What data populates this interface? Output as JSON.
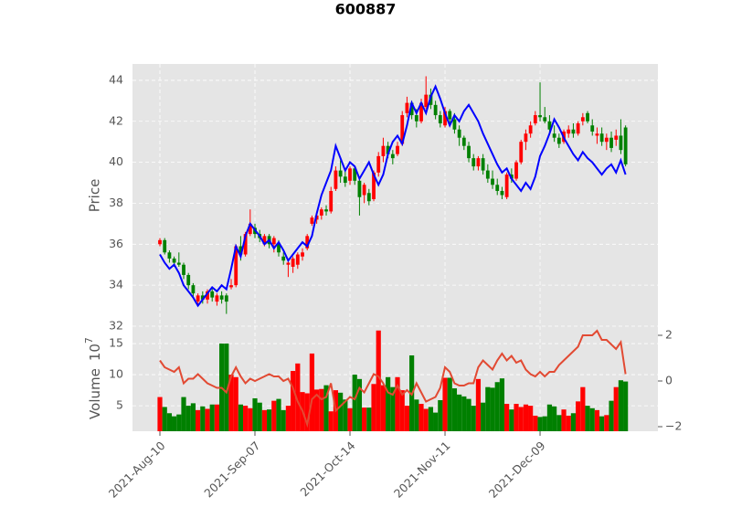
{
  "chart_data": {
    "type": "candlestick",
    "title": "600887",
    "ylabel": "Price",
    "up_color": "red",
    "down_color": "green",
    "grid": true,
    "xlim": [
      -5.77,
      104.8
    ],
    "xticks": [
      {
        "value": 0,
        "label": "2021-Aug-10"
      },
      {
        "value": 20,
        "label": "2021-Sep-07"
      },
      {
        "value": 40,
        "label": "2021-Oct-14"
      },
      {
        "value": 60,
        "label": "2021-Nov-11"
      },
      {
        "value": 80,
        "label": "2021-Dec-09"
      }
    ],
    "ylim": [
      32,
      44.8
    ],
    "yticks": [
      32,
      34,
      36,
      38,
      40,
      42,
      44
    ],
    "open": [
      36.0,
      36.2,
      35.6,
      35.3,
      35.1,
      35.0,
      34.5,
      34.0,
      33.2,
      33.5,
      33.3,
      33.7,
      33.2,
      33.5,
      33.5,
      33.9,
      34.0,
      35.9,
      35.5,
      36.5,
      36.8,
      36.5,
      36.0,
      36.4,
      36.0,
      36.0,
      35.4,
      35.0,
      34.9,
      35.0,
      35.4,
      35.8,
      37.0,
      37.2,
      37.4,
      37.7,
      37.6,
      38.7,
      39.6,
      39.3,
      39.1,
      39.7,
      39.1,
      38.4,
      38.5,
      38.2,
      39.5,
      40.3,
      40.8,
      40.4,
      40.4,
      40.9,
      42.4,
      42.9,
      42.3,
      42.0,
      42.7,
      43.3,
      42.8,
      42.3,
      41.8,
      42.5,
      42.1,
      41.6,
      41.2,
      40.8,
      40.2,
      39.8,
      40.2,
      39.6,
      39.2,
      38.9,
      38.6,
      38.3,
      39.4,
      39.2,
      40.0,
      41.0,
      41.4,
      41.9,
      42.3,
      42.2,
      42.0,
      41.4,
      41.2,
      41.0,
      41.4,
      41.6,
      41.4,
      42.0,
      42.4,
      41.8,
      41.3,
      41.4,
      41.0,
      41.2,
      41.1,
      41.3,
      41.7
    ],
    "high": [
      36.3,
      36.3,
      35.7,
      35.4,
      35.6,
      35.1,
      34.6,
      34.1,
      33.6,
      33.7,
      33.8,
      33.9,
      33.6,
      33.7,
      33.6,
      34.3,
      36.0,
      36.4,
      36.6,
      37.7,
      37.0,
      36.7,
      36.5,
      36.5,
      36.4,
      36.2,
      35.6,
      35.3,
      35.4,
      35.6,
      35.8,
      36.5,
      37.4,
      37.6,
      37.8,
      37.9,
      38.8,
      39.8,
      40.1,
      39.6,
      39.8,
      39.8,
      39.3,
      39.0,
      38.7,
      39.6,
      40.5,
      41.2,
      41.0,
      40.6,
      41.0,
      42.5,
      43.2,
      43.0,
      42.6,
      43.1,
      44.2,
      43.6,
      43.0,
      42.5,
      42.7,
      42.6,
      42.4,
      41.8,
      41.3,
      41.0,
      40.4,
      40.3,
      40.4,
      39.9,
      39.6,
      39.2,
      38.8,
      39.5,
      39.7,
      40.1,
      41.1,
      41.6,
      42.0,
      42.5,
      43.9,
      42.7,
      42.3,
      41.8,
      41.4,
      41.6,
      41.8,
      41.9,
      42.0,
      42.4,
      42.5,
      42.1,
      41.7,
      41.7,
      41.4,
      41.5,
      41.6,
      42.1,
      41.8
    ],
    "low": [
      35.9,
      35.5,
      35.1,
      34.9,
      34.9,
      34.3,
      33.8,
      33.4,
      33.0,
      33.1,
      33.1,
      33.2,
      33.0,
      33.1,
      32.6,
      33.8,
      33.9,
      35.2,
      35.4,
      36.4,
      36.3,
      36.1,
      35.9,
      35.8,
      35.6,
      35.4,
      35.0,
      34.4,
      34.6,
      34.8,
      35.2,
      35.7,
      36.9,
      37.0,
      37.2,
      37.4,
      37.5,
      38.6,
      39.0,
      38.8,
      38.9,
      38.9,
      37.4,
      38.0,
      37.9,
      38.1,
      39.3,
      40.0,
      40.2,
      39.9,
      40.3,
      40.8,
      42.2,
      42.1,
      41.7,
      41.9,
      42.6,
      42.6,
      42.1,
      41.7,
      41.7,
      41.9,
      41.4,
      40.8,
      40.6,
      40.0,
      39.6,
      39.6,
      39.4,
      39.0,
      38.7,
      38.4,
      38.2,
      38.2,
      39.0,
      39.1,
      39.9,
      40.6,
      41.2,
      41.8,
      42.0,
      41.9,
      41.4,
      41.0,
      40.7,
      40.9,
      41.2,
      41.2,
      41.3,
      41.8,
      41.9,
      41.3,
      40.9,
      40.8,
      40.6,
      40.5,
      40.8,
      40.4,
      39.8
    ],
    "close": [
      36.2,
      35.6,
      35.3,
      35.1,
      35.0,
      34.5,
      34.0,
      33.6,
      33.5,
      33.3,
      33.7,
      33.4,
      33.5,
      33.3,
      33.2,
      34.0,
      35.9,
      35.5,
      36.5,
      37.0,
      36.5,
      36.3,
      36.4,
      36.0,
      36.3,
      35.6,
      35.2,
      35.1,
      35.3,
      35.5,
      35.6,
      36.4,
      37.3,
      37.4,
      37.7,
      37.6,
      38.6,
      39.6,
      39.3,
      39.0,
      39.7,
      39.1,
      38.3,
      38.9,
      38.1,
      39.5,
      40.3,
      40.8,
      40.4,
      40.2,
      40.8,
      42.3,
      42.9,
      42.3,
      42.0,
      42.9,
      43.3,
      42.8,
      42.3,
      41.9,
      42.5,
      42.1,
      41.6,
      41.2,
      40.8,
      40.2,
      39.8,
      40.2,
      39.6,
      39.2,
      38.9,
      38.6,
      38.4,
      39.4,
      39.2,
      40.0,
      41.0,
      41.4,
      41.8,
      42.3,
      42.2,
      42.0,
      41.6,
      41.2,
      40.9,
      41.5,
      41.6,
      41.4,
      41.9,
      42.2,
      42.0,
      41.5,
      41.4,
      41.0,
      41.2,
      40.7,
      41.3,
      40.6,
      39.9
    ],
    "ma": {
      "color": "blue",
      "values": [
        35.5,
        35.1,
        34.8,
        35.0,
        34.6,
        34.0,
        33.7,
        33.4,
        33.0,
        33.3,
        33.6,
        33.9,
        33.7,
        34.0,
        33.8,
        34.8,
        35.9,
        35.4,
        36.4,
        37.0,
        36.7,
        36.4,
        36.0,
        36.2,
        35.8,
        36.1,
        35.7,
        35.2,
        35.5,
        35.8,
        36.1,
        35.9,
        36.4,
        37.5,
        38.4,
        39.0,
        39.6,
        40.8,
        40.2,
        39.6,
        40.0,
        39.8,
        39.2,
        39.6,
        40.0,
        39.4,
        38.9,
        39.4,
        40.4,
        41.0,
        41.3,
        40.9,
        41.8,
        42.9,
        42.4,
        42.9,
        42.4,
        43.2,
        43.7,
        43.1,
        42.4,
        41.8,
        42.3,
        42.0,
        42.5,
        42.8,
        42.4,
        42.0,
        41.4,
        40.9,
        40.4,
        39.9,
        39.5,
        39.7,
        39.2,
        38.9,
        38.6,
        39.0,
        38.7,
        39.3,
        40.3,
        40.8,
        41.4,
        42.1,
        41.7,
        41.2,
        40.8,
        40.4,
        40.1,
        40.5,
        40.2,
        40.0,
        39.7,
        39.4,
        39.7,
        39.9,
        39.5,
        40.1,
        39.4
      ]
    },
    "volume": {
      "ylabel": "Volume",
      "multiplier_base": "10",
      "multiplier_exponent": "7",
      "ylim": [
        0.9,
        17.8
      ],
      "yticks": [
        5,
        10,
        15
      ],
      "values": [
        6.4,
        4.8,
        3.8,
        3.3,
        3.6,
        6.4,
        5.0,
        5.4,
        4.3,
        4.9,
        4.5,
        5.2,
        5.2,
        15.0,
        15.0,
        10.0,
        9.6,
        5.2,
        5.0,
        4.6,
        6.2,
        5.5,
        4.3,
        4.4,
        5.8,
        6.1,
        4.3,
        5.0,
        10.6,
        11.8,
        7.2,
        7.0,
        13.4,
        7.6,
        7.7,
        8.3,
        4.1,
        7.5,
        7.1,
        6.0,
        4.6,
        10.0,
        9.3,
        4.7,
        4.7,
        8.5,
        17.1,
        8.3,
        9.6,
        8.0,
        9.6,
        7.5,
        5.0,
        13.1,
        6.0,
        5.3,
        4.5,
        4.8,
        3.9,
        5.9,
        9.5,
        9.5,
        7.8,
        6.8,
        6.5,
        6.1,
        5.0,
        9.3,
        5.5,
        8.0,
        7.9,
        8.8,
        9.4,
        5.3,
        4.4,
        5.3,
        4.8,
        5.2,
        5.0,
        3.4,
        3.2,
        3.3,
        5.2,
        4.9,
        3.5,
        4.4,
        3.4,
        3.8,
        5.7,
        8.0,
        5.0,
        4.6,
        4.3,
        3.3,
        3.5,
        5.8,
        8.0,
        9.1,
        8.9
      ]
    },
    "y2lim": [
      -2.2,
      2.4
    ],
    "y2ticks": [
      {
        "value": -2,
        "label": "−2"
      },
      0,
      2
    ],
    "y2_series": {
      "color": "#e24a33",
      "axis": "y2",
      "values": [
        0.9,
        0.6,
        0.5,
        0.4,
        0.6,
        -0.1,
        0.1,
        0.1,
        0.3,
        0.1,
        -0.1,
        -0.2,
        -0.3,
        -0.3,
        -0.5,
        0.2,
        0.6,
        0.2,
        -0.1,
        0.1,
        0.0,
        0.1,
        0.2,
        0.3,
        0.2,
        0.2,
        0.0,
        0.1,
        -0.3,
        -0.9,
        -1.3,
        -1.9,
        -0.8,
        -0.6,
        -0.8,
        -0.7,
        -0.1,
        -1.3,
        -1.1,
        -0.9,
        -0.7,
        -0.8,
        -0.3,
        -0.5,
        -0.1,
        0.3,
        0.2,
        -0.1,
        -0.5,
        -0.6,
        -0.2,
        -0.6,
        -0.4,
        -0.6,
        -0.1,
        -0.5,
        -0.9,
        -0.8,
        -0.7,
        -0.3,
        0.6,
        0.4,
        -0.1,
        -0.2,
        -0.2,
        -0.1,
        -0.1,
        0.6,
        0.9,
        0.7,
        0.5,
        0.9,
        1.2,
        0.9,
        1.1,
        0.8,
        0.9,
        0.5,
        0.3,
        0.2,
        0.4,
        0.2,
        0.4,
        0.4,
        0.7,
        0.9,
        1.1,
        1.3,
        1.5,
        2.0,
        2.0,
        2.0,
        2.2,
        1.8,
        1.8,
        1.6,
        1.4,
        1.7,
        0.3
      ]
    }
  }
}
